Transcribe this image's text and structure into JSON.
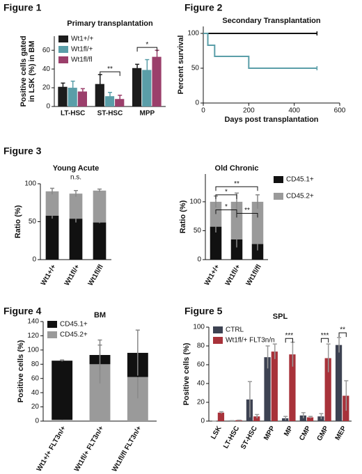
{
  "chart_data": [
    {
      "type": "bar",
      "figure": "Figure 1",
      "title": "Primary transplantation",
      "ylabel": [
        "Positive cells gated",
        "in LSK (%) in BM"
      ],
      "categories": [
        "LT-HSC",
        "ST-HSC",
        "MPP"
      ],
      "series": [
        {
          "name": "Wt1+/+",
          "color": "#1c1c1c",
          "values": [
            21,
            24,
            41
          ],
          "errors": [
            4,
            10,
            4
          ]
        },
        {
          "name": "Wt1fl/+",
          "color": "#5a9ea8",
          "values": [
            20,
            11,
            39
          ],
          "errors": [
            7,
            4,
            11
          ]
        },
        {
          "name": "Wt1fl/fl",
          "color": "#9b3f6b",
          "values": [
            16,
            8,
            53
          ],
          "errors": [
            3,
            4,
            7
          ]
        }
      ],
      "ylim": [
        0,
        75
      ],
      "yticks": [
        0,
        20,
        40,
        60
      ],
      "legend": "upper left",
      "annotations": [
        {
          "text": "**",
          "category": 1,
          "y": 37
        },
        {
          "text": "*",
          "category": 2,
          "y": 63
        }
      ]
    },
    {
      "type": "line",
      "figure": "Figure 2",
      "title": "Secondary Transplantation",
      "ylabel": "Percent survival",
      "xlabel": "Days post transplantation",
      "series": [
        {
          "color": "#111111",
          "x": [
            0,
            500
          ],
          "values": [
            100,
            100
          ]
        },
        {
          "color": "#5a9ea8",
          "x": [
            0,
            20,
            20,
            50,
            50,
            200,
            200,
            500
          ],
          "values": [
            100,
            100,
            83,
            83,
            67,
            67,
            50,
            50
          ]
        }
      ],
      "xlim": [
        0,
        600
      ],
      "xticks": [
        0,
        200,
        400,
        600
      ],
      "ylim": [
        0,
        110
      ],
      "yticks": [
        0,
        50,
        100
      ]
    },
    {
      "type": "bar",
      "stacked": true,
      "figure": "Figure 3",
      "title": "Young Acute",
      "subtitle": "n.s.",
      "ylabel": "Ratio (%)",
      "categories": [
        "Wt1+/+",
        "Wt1fl/+",
        "Wt1fl/fl"
      ],
      "error_color": "#888888",
      "series": [
        {
          "name": "CD45.1+",
          "color": "#111111",
          "values": [
            58,
            54,
            49
          ],
          "errors": [
            4,
            5,
            1
          ]
        },
        {
          "name": "CD45.2+",
          "color": "#9a9a9a",
          "values": [
            32,
            33,
            42
          ],
          "errors": [
            4,
            4,
            2
          ]
        }
      ],
      "ylim": [
        0,
        100
      ],
      "yticks": [
        0,
        50,
        100
      ]
    },
    {
      "type": "bar",
      "stacked": true,
      "title": "Old Chronic",
      "ylabel": "Ratio (%)",
      "categories": [
        "Wt1+/+",
        "Wt1fl/+",
        "Wt1fl/fl"
      ],
      "error_color": "#888888",
      "series": [
        {
          "name": "CD45.1+",
          "color": "#111111",
          "values": [
            57,
            35,
            27
          ],
          "errors": [
            10,
            14,
            11
          ]
        },
        {
          "name": "CD45.2+",
          "color": "#9a9a9a",
          "values": [
            43,
            65,
            73
          ],
          "errors": [
            10,
            15,
            12
          ]
        }
      ],
      "ylim": [
        0,
        148
      ],
      "yticks": [
        0,
        50,
        100
      ],
      "legend": "right",
      "annotations": [
        {
          "text": "**",
          "from": 0,
          "to": 2,
          "y": 126
        },
        {
          "text": "*",
          "from": 0,
          "to": 1,
          "y": 112
        },
        {
          "text": "*",
          "from": 0,
          "to": 1,
          "y": 86
        },
        {
          "text": "**",
          "from": 1,
          "to": 2,
          "y": 80
        }
      ]
    },
    {
      "type": "bar",
      "stacked": true,
      "figure": "Figure 4",
      "title": "BM",
      "ylabel": "Positive cells (%)",
      "categories": [
        "Wt1+/+ FLT3n/+",
        "Wt1fl/+ FLT3n/+",
        "Wt1fl/fl FLT3n/+"
      ],
      "error_color": "#888888",
      "series": [
        {
          "name": "CD45.2+",
          "color": "#9a9a9a",
          "values": [
            2,
            80,
            62
          ],
          "errors": [
            1,
            27,
            30
          ]
        },
        {
          "name": "CD45.1+",
          "color": "#111111",
          "values": [
            83,
            13,
            34
          ],
          "errors": [
            1,
            21,
            32
          ]
        }
      ],
      "ylim": [
        0,
        140
      ],
      "yticks": [
        0,
        20,
        40,
        60,
        80,
        100,
        120,
        140
      ],
      "legend": "upper left",
      "legend_reverse": true
    },
    {
      "type": "bar",
      "figure": "Figure 5",
      "title": "SPL",
      "ylabel": "Positive cells (%)",
      "categories": [
        "LSK",
        "LT-HSC",
        "ST-HSC",
        "MPP",
        "MP",
        "CMP",
        "GMP",
        "MEP"
      ],
      "error_color": "#999999",
      "series": [
        {
          "name": "CTRL",
          "color": "#3d4252",
          "values": [
            0,
            0.5,
            23,
            68,
            3,
            6,
            5,
            81
          ],
          "errors": [
            0,
            0,
            19,
            12,
            2,
            3,
            3,
            8
          ]
        },
        {
          "name": "Wt1fl/+ FLT3n/n",
          "color": "#a8323a",
          "values": [
            9,
            1,
            5,
            74,
            71,
            4,
            67,
            27
          ],
          "errors": [
            1,
            0,
            2,
            8,
            13,
            1,
            15,
            16
          ]
        }
      ],
      "ylim": [
        0,
        100
      ],
      "yticks": [
        0,
        20,
        40,
        60,
        80,
        100
      ],
      "legend": "upper left",
      "annotations": [
        {
          "text": "***",
          "category": 4,
          "y": 88
        },
        {
          "text": "***",
          "category": 6,
          "y": 88
        },
        {
          "text": "**",
          "category": 7,
          "y": 94
        }
      ]
    }
  ]
}
